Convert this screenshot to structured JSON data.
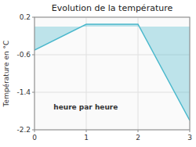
{
  "chart_data": {
    "type": "area",
    "title": "Evolution de la température",
    "xlabel": "heure par heure",
    "ylabel": "Température en °C",
    "x": [
      0,
      1,
      2,
      3
    ],
    "values": [
      -0.5,
      0.05,
      0.05,
      -2.0
    ],
    "color": "#4ab8cc",
    "xlim": [
      0,
      3
    ],
    "ylim": [
      -2.2,
      0.2
    ],
    "xticks": [
      0,
      1,
      2,
      3
    ],
    "yticks": [
      0.2,
      -0.6,
      -1.4,
      -2.2
    ],
    "grid": true
  }
}
